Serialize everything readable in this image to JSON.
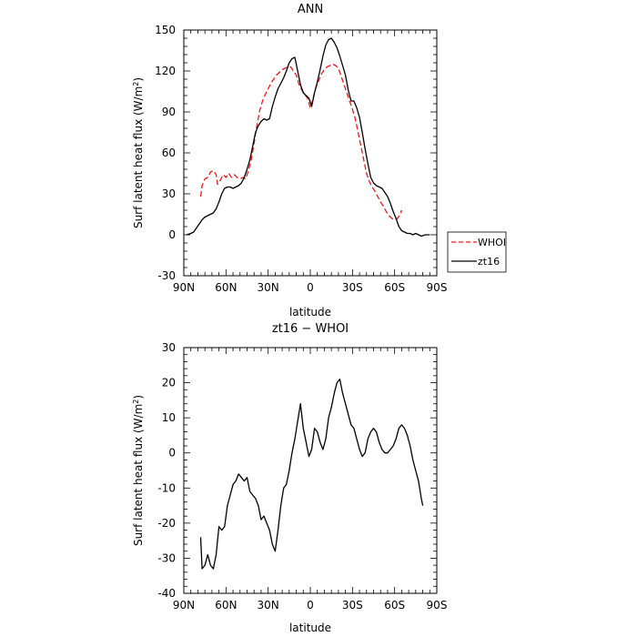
{
  "chart_data": [
    {
      "type": "line",
      "title": "ANN",
      "xlabel": "latitude",
      "ylabel": "Surf latent heat flux (W/m²)",
      "ylabel_parts": {
        "main": "Surf latent heat flux (W/m",
        "sup": "2",
        "close": ")"
      },
      "xlim": [
        90,
        -90
      ],
      "ylim": [
        -30,
        150
      ],
      "xticks": [
        90,
        60,
        30,
        0,
        -30,
        -60,
        -90
      ],
      "xtick_labels": [
        "90N",
        "60N",
        "30N",
        "0",
        "30S",
        "60S",
        "90S"
      ],
      "yticks": [
        -30,
        0,
        30,
        60,
        90,
        120,
        150
      ],
      "ytick_labels": [
        "-30",
        "0",
        "30",
        "60",
        "90",
        "120",
        "150"
      ],
      "legend_placement": "right, outside plot",
      "series": [
        {
          "name": "WHOI",
          "color": "#e41a1c",
          "dash": "dashed",
          "points": [
            [
              78,
              28
            ],
            [
              77,
              36
            ],
            [
              75,
              41
            ],
            [
              73,
              42
            ],
            [
              71,
              46
            ],
            [
              69,
              47
            ],
            [
              67,
              44
            ],
            [
              66,
              37
            ],
            [
              64,
              40
            ],
            [
              62,
              44
            ],
            [
              60,
              42
            ],
            [
              58,
              45
            ],
            [
              56,
              42
            ],
            [
              54,
              44
            ],
            [
              52,
              42
            ],
            [
              50,
              41
            ],
            [
              48,
              42
            ],
            [
              46,
              41
            ],
            [
              44,
              47
            ],
            [
              42,
              55
            ],
            [
              40,
              67
            ],
            [
              38,
              80
            ],
            [
              36,
              91
            ],
            [
              34,
              98
            ],
            [
              32,
              103
            ],
            [
              30,
              107
            ],
            [
              28,
              111
            ],
            [
              26,
              114
            ],
            [
              24,
              117
            ],
            [
              22,
              119
            ],
            [
              20,
              121
            ],
            [
              18,
              122
            ],
            [
              16,
              123
            ],
            [
              14,
              123
            ],
            [
              12,
              120
            ],
            [
              10,
              117
            ],
            [
              8,
              110
            ],
            [
              6,
              106
            ],
            [
              4,
              103
            ],
            [
              2,
              100
            ],
            [
              0,
              93
            ],
            [
              -2,
              100
            ],
            [
              -4,
              108
            ],
            [
              -6,
              113
            ],
            [
              -8,
              118
            ],
            [
              -10,
              121
            ],
            [
              -12,
              123
            ],
            [
              -14,
              124
            ],
            [
              -16,
              125
            ],
            [
              -18,
              124
            ],
            [
              -20,
              122
            ],
            [
              -22,
              116
            ],
            [
              -24,
              110
            ],
            [
              -26,
              104
            ],
            [
              -28,
              98
            ],
            [
              -30,
              92
            ],
            [
              -32,
              85
            ],
            [
              -34,
              75
            ],
            [
              -36,
              65
            ],
            [
              -38,
              55
            ],
            [
              -40,
              45
            ],
            [
              -42,
              39
            ],
            [
              -44,
              35
            ],
            [
              -46,
              32
            ],
            [
              -48,
              28
            ],
            [
              -50,
              24
            ],
            [
              -52,
              21
            ],
            [
              -54,
              17
            ],
            [
              -56,
              14
            ],
            [
              -58,
              12
            ],
            [
              -60,
              11
            ],
            [
              -62,
              12
            ],
            [
              -64,
              15
            ],
            [
              -65,
              18
            ]
          ]
        },
        {
          "name": "zt16",
          "color": "#000000",
          "dash": "solid",
          "points": [
            [
              88,
              0
            ],
            [
              85,
              1
            ],
            [
              83,
              2
            ],
            [
              81,
              5
            ],
            [
              79,
              8
            ],
            [
              77,
              11
            ],
            [
              75,
              13
            ],
            [
              73,
              14
            ],
            [
              71,
              15
            ],
            [
              69,
              16
            ],
            [
              67,
              19
            ],
            [
              65,
              24
            ],
            [
              63,
              30
            ],
            [
              61,
              34
            ],
            [
              59,
              35
            ],
            [
              57,
              35
            ],
            [
              55,
              34
            ],
            [
              53,
              35
            ],
            [
              51,
              36
            ],
            [
              49,
              38
            ],
            [
              47,
              42
            ],
            [
              45,
              48
            ],
            [
              43,
              55
            ],
            [
              41,
              65
            ],
            [
              39,
              75
            ],
            [
              37,
              80
            ],
            [
              35,
              83
            ],
            [
              33,
              85
            ],
            [
              31,
              84
            ],
            [
              29,
              85
            ],
            [
              27,
              94
            ],
            [
              25,
              101
            ],
            [
              23,
              107
            ],
            [
              21,
              111
            ],
            [
              19,
              115
            ],
            [
              17,
              120
            ],
            [
              15,
              126
            ],
            [
              13,
              129
            ],
            [
              11,
              130
            ],
            [
              9,
              120
            ],
            [
              7,
              110
            ],
            [
              5,
              104
            ],
            [
              3,
              102
            ],
            [
              1,
              100
            ],
            [
              -1,
              94
            ],
            [
              -3,
              104
            ],
            [
              -5,
              112
            ],
            [
              -7,
              121
            ],
            [
              -9,
              131
            ],
            [
              -11,
              139
            ],
            [
              -13,
              143
            ],
            [
              -15,
              144
            ],
            [
              -17,
              141
            ],
            [
              -19,
              137
            ],
            [
              -21,
              131
            ],
            [
              -23,
              124
            ],
            [
              -25,
              117
            ],
            [
              -27,
              106
            ],
            [
              -29,
              98
            ],
            [
              -31,
              98
            ],
            [
              -33,
              93
            ],
            [
              -35,
              86
            ],
            [
              -37,
              75
            ],
            [
              -39,
              63
            ],
            [
              -41,
              52
            ],
            [
              -43,
              42
            ],
            [
              -45,
              38
            ],
            [
              -47,
              36
            ],
            [
              -49,
              35
            ],
            [
              -51,
              34
            ],
            [
              -53,
              31
            ],
            [
              -55,
              28
            ],
            [
              -57,
              23
            ],
            [
              -59,
              17
            ],
            [
              -61,
              12
            ],
            [
              -63,
              6
            ],
            [
              -65,
              3
            ],
            [
              -67,
              2
            ],
            [
              -69,
              1
            ],
            [
              -71,
              1
            ],
            [
              -73,
              0
            ],
            [
              -75,
              1
            ],
            [
              -77,
              0
            ],
            [
              -79,
              -1
            ],
            [
              -82,
              0
            ],
            [
              -85,
              0
            ]
          ]
        }
      ]
    },
    {
      "type": "line",
      "title": "zt16 − WHOI",
      "xlabel": "latitude",
      "ylabel": "Surf latent heat flux (W/m²)",
      "ylabel_parts": {
        "main": "Surf latent heat flux (W/m",
        "sup": "2",
        "close": ")"
      },
      "xlim": [
        90,
        -90
      ],
      "ylim": [
        -40,
        30
      ],
      "xticks": [
        90,
        60,
        30,
        0,
        -30,
        -60,
        -90
      ],
      "xtick_labels": [
        "90N",
        "60N",
        "30N",
        "0",
        "30S",
        "60S",
        "90S"
      ],
      "yticks": [
        -40,
        -30,
        -20,
        -10,
        0,
        10,
        20,
        30
      ],
      "ytick_labels": [
        "-40",
        "-30",
        "-20",
        "-10",
        "0",
        "10",
        "20",
        "30"
      ],
      "series": [
        {
          "color": "#000000",
          "dash": "solid",
          "points": [
            [
              78,
              -24
            ],
            [
              77,
              -33
            ],
            [
              75,
              -32
            ],
            [
              73,
              -29
            ],
            [
              71,
              -32
            ],
            [
              69,
              -33
            ],
            [
              67,
              -29
            ],
            [
              65,
              -21
            ],
            [
              63,
              -22
            ],
            [
              61,
              -21
            ],
            [
              59,
              -15
            ],
            [
              57,
              -12
            ],
            [
              55,
              -9
            ],
            [
              53,
              -8
            ],
            [
              51,
              -6
            ],
            [
              49,
              -7
            ],
            [
              47,
              -8
            ],
            [
              45,
              -7
            ],
            [
              43,
              -11
            ],
            [
              41,
              -12
            ],
            [
              39,
              -13
            ],
            [
              37,
              -15
            ],
            [
              35,
              -19
            ],
            [
              33,
              -18
            ],
            [
              31,
              -20
            ],
            [
              29,
              -22
            ],
            [
              27,
              -26
            ],
            [
              25,
              -28
            ],
            [
              23,
              -22
            ],
            [
              21,
              -15
            ],
            [
              19,
              -10
            ],
            [
              17,
              -9
            ],
            [
              15,
              -5
            ],
            [
              13,
              0
            ],
            [
              11,
              4
            ],
            [
              9,
              9
            ],
            [
              7,
              14
            ],
            [
              5,
              7
            ],
            [
              3,
              3
            ],
            [
              1,
              -1
            ],
            [
              -1,
              1
            ],
            [
              -3,
              7
            ],
            [
              -5,
              6
            ],
            [
              -7,
              3
            ],
            [
              -9,
              1
            ],
            [
              -11,
              4
            ],
            [
              -13,
              10
            ],
            [
              -15,
              13
            ],
            [
              -17,
              17
            ],
            [
              -19,
              20
            ],
            [
              -21,
              21
            ],
            [
              -23,
              17
            ],
            [
              -25,
              14
            ],
            [
              -27,
              11
            ],
            [
              -29,
              8
            ],
            [
              -31,
              7
            ],
            [
              -33,
              4
            ],
            [
              -35,
              1
            ],
            [
              -37,
              -1
            ],
            [
              -39,
              0
            ],
            [
              -41,
              4
            ],
            [
              -43,
              6
            ],
            [
              -45,
              7
            ],
            [
              -47,
              6
            ],
            [
              -49,
              3
            ],
            [
              -51,
              1
            ],
            [
              -53,
              0
            ],
            [
              -55,
              0
            ],
            [
              -57,
              1
            ],
            [
              -59,
              2
            ],
            [
              -61,
              4
            ],
            [
              -63,
              7
            ],
            [
              -65,
              8
            ],
            [
              -67,
              7
            ],
            [
              -69,
              5
            ],
            [
              -71,
              2
            ],
            [
              -73,
              -2
            ],
            [
              -75,
              -5
            ],
            [
              -77,
              -8
            ],
            [
              -79,
              -13
            ],
            [
              -80,
              -15
            ]
          ]
        }
      ]
    }
  ]
}
